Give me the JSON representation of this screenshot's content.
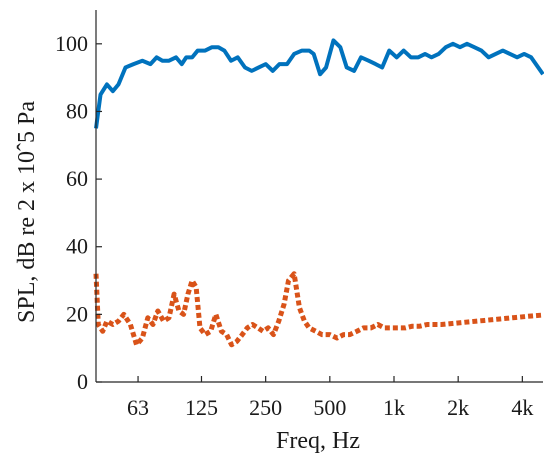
{
  "chart_data": {
    "type": "line",
    "title": "",
    "xlabel": "Freq, Hz",
    "ylabel": "SPL, dB re 2 x 10ˆ5 Pa",
    "xscale": "log",
    "xlim": [
      40,
      5000
    ],
    "ylim": [
      0,
      110
    ],
    "grid": false,
    "legend": "none",
    "x_ticks": [
      {
        "value": 63,
        "label": "63"
      },
      {
        "value": 125,
        "label": "125"
      },
      {
        "value": 250,
        "label": "250"
      },
      {
        "value": 500,
        "label": "500"
      },
      {
        "value": 1000,
        "label": "1k"
      },
      {
        "value": 2000,
        "label": "2k"
      },
      {
        "value": 4000,
        "label": "4k"
      }
    ],
    "y_ticks": [
      {
        "value": 0,
        "label": "0"
      },
      {
        "value": 20,
        "label": "20"
      },
      {
        "value": 40,
        "label": "40"
      },
      {
        "value": 60,
        "label": "60"
      },
      {
        "value": 80,
        "label": "80"
      },
      {
        "value": 100,
        "label": "100"
      }
    ],
    "series": [
      {
        "color": "#0072bd",
        "style": "solid",
        "x": [
          40,
          42,
          45,
          48,
          51,
          55,
          60,
          66,
          72,
          77,
          82,
          88,
          95,
          101,
          106,
          113,
          120,
          130,
          140,
          150,
          160,
          172,
          185,
          200,
          215,
          232,
          250,
          270,
          290,
          315,
          340,
          370,
          400,
          420,
          450,
          480,
          520,
          560,
          600,
          650,
          700,
          760,
          820,
          880,
          950,
          1030,
          1110,
          1200,
          1300,
          1400,
          1500,
          1620,
          1750,
          1890,
          2040,
          2200,
          2380,
          2570,
          2780,
          3000,
          3240,
          3500,
          3780,
          4080,
          4400,
          4750,
          5000
        ],
        "y": [
          75,
          85,
          88,
          86,
          88,
          93,
          94,
          95,
          94,
          96,
          95,
          95,
          96,
          94,
          96,
          96,
          98,
          98,
          99,
          99,
          98,
          95,
          96,
          93,
          92,
          93,
          94,
          92,
          94,
          94,
          97,
          98,
          98,
          97,
          91,
          93,
          101,
          99,
          93,
          92,
          96,
          95,
          94,
          93,
          98,
          96,
          98,
          96,
          96,
          97,
          96,
          97,
          99,
          100,
          99,
          100,
          99,
          98,
          96,
          97,
          98,
          97,
          96,
          97,
          96,
          93,
          91
        ]
      },
      {
        "color": "#d95319",
        "style": "dotted",
        "x": [
          40,
          41,
          43,
          45,
          48,
          51,
          54,
          58,
          62,
          66,
          70,
          74,
          78,
          83,
          88,
          93,
          98,
          103,
          108,
          113,
          118,
          123,
          130,
          138,
          146,
          155,
          164,
          173,
          183,
          194,
          205,
          217,
          230,
          243,
          257,
          272,
          288,
          305,
          320,
          340,
          360,
          380,
          400,
          430,
          460,
          500,
          540,
          580,
          620,
          670,
          720,
          780,
          840,
          900,
          970,
          1050,
          1130,
          1220,
          1320,
          1430,
          1540,
          1670,
          1800,
          1950,
          2100,
          2270,
          2450,
          2650,
          2860,
          3090,
          3340,
          3600,
          3900,
          4200,
          4550,
          5000
        ],
        "y": [
          32,
          17,
          15,
          18,
          17,
          18,
          20,
          17,
          11,
          13,
          19,
          17,
          21,
          18,
          19,
          26,
          21,
          20,
          26,
          30,
          28,
          16,
          14,
          15,
          20,
          15,
          14,
          11,
          12,
          14,
          16,
          17,
          16,
          15,
          16,
          14,
          18,
          23,
          30,
          32,
          22,
          18,
          16,
          15,
          14,
          14,
          13,
          14,
          14,
          15,
          16,
          16,
          17,
          16,
          16,
          16,
          16,
          16.5,
          16.5,
          17,
          17,
          17,
          17.2,
          17.4,
          17.6,
          17.8,
          18,
          18.2,
          18.4,
          18.6,
          18.8,
          19,
          19.2,
          19.4,
          19.6,
          19.8
        ]
      }
    ]
  }
}
